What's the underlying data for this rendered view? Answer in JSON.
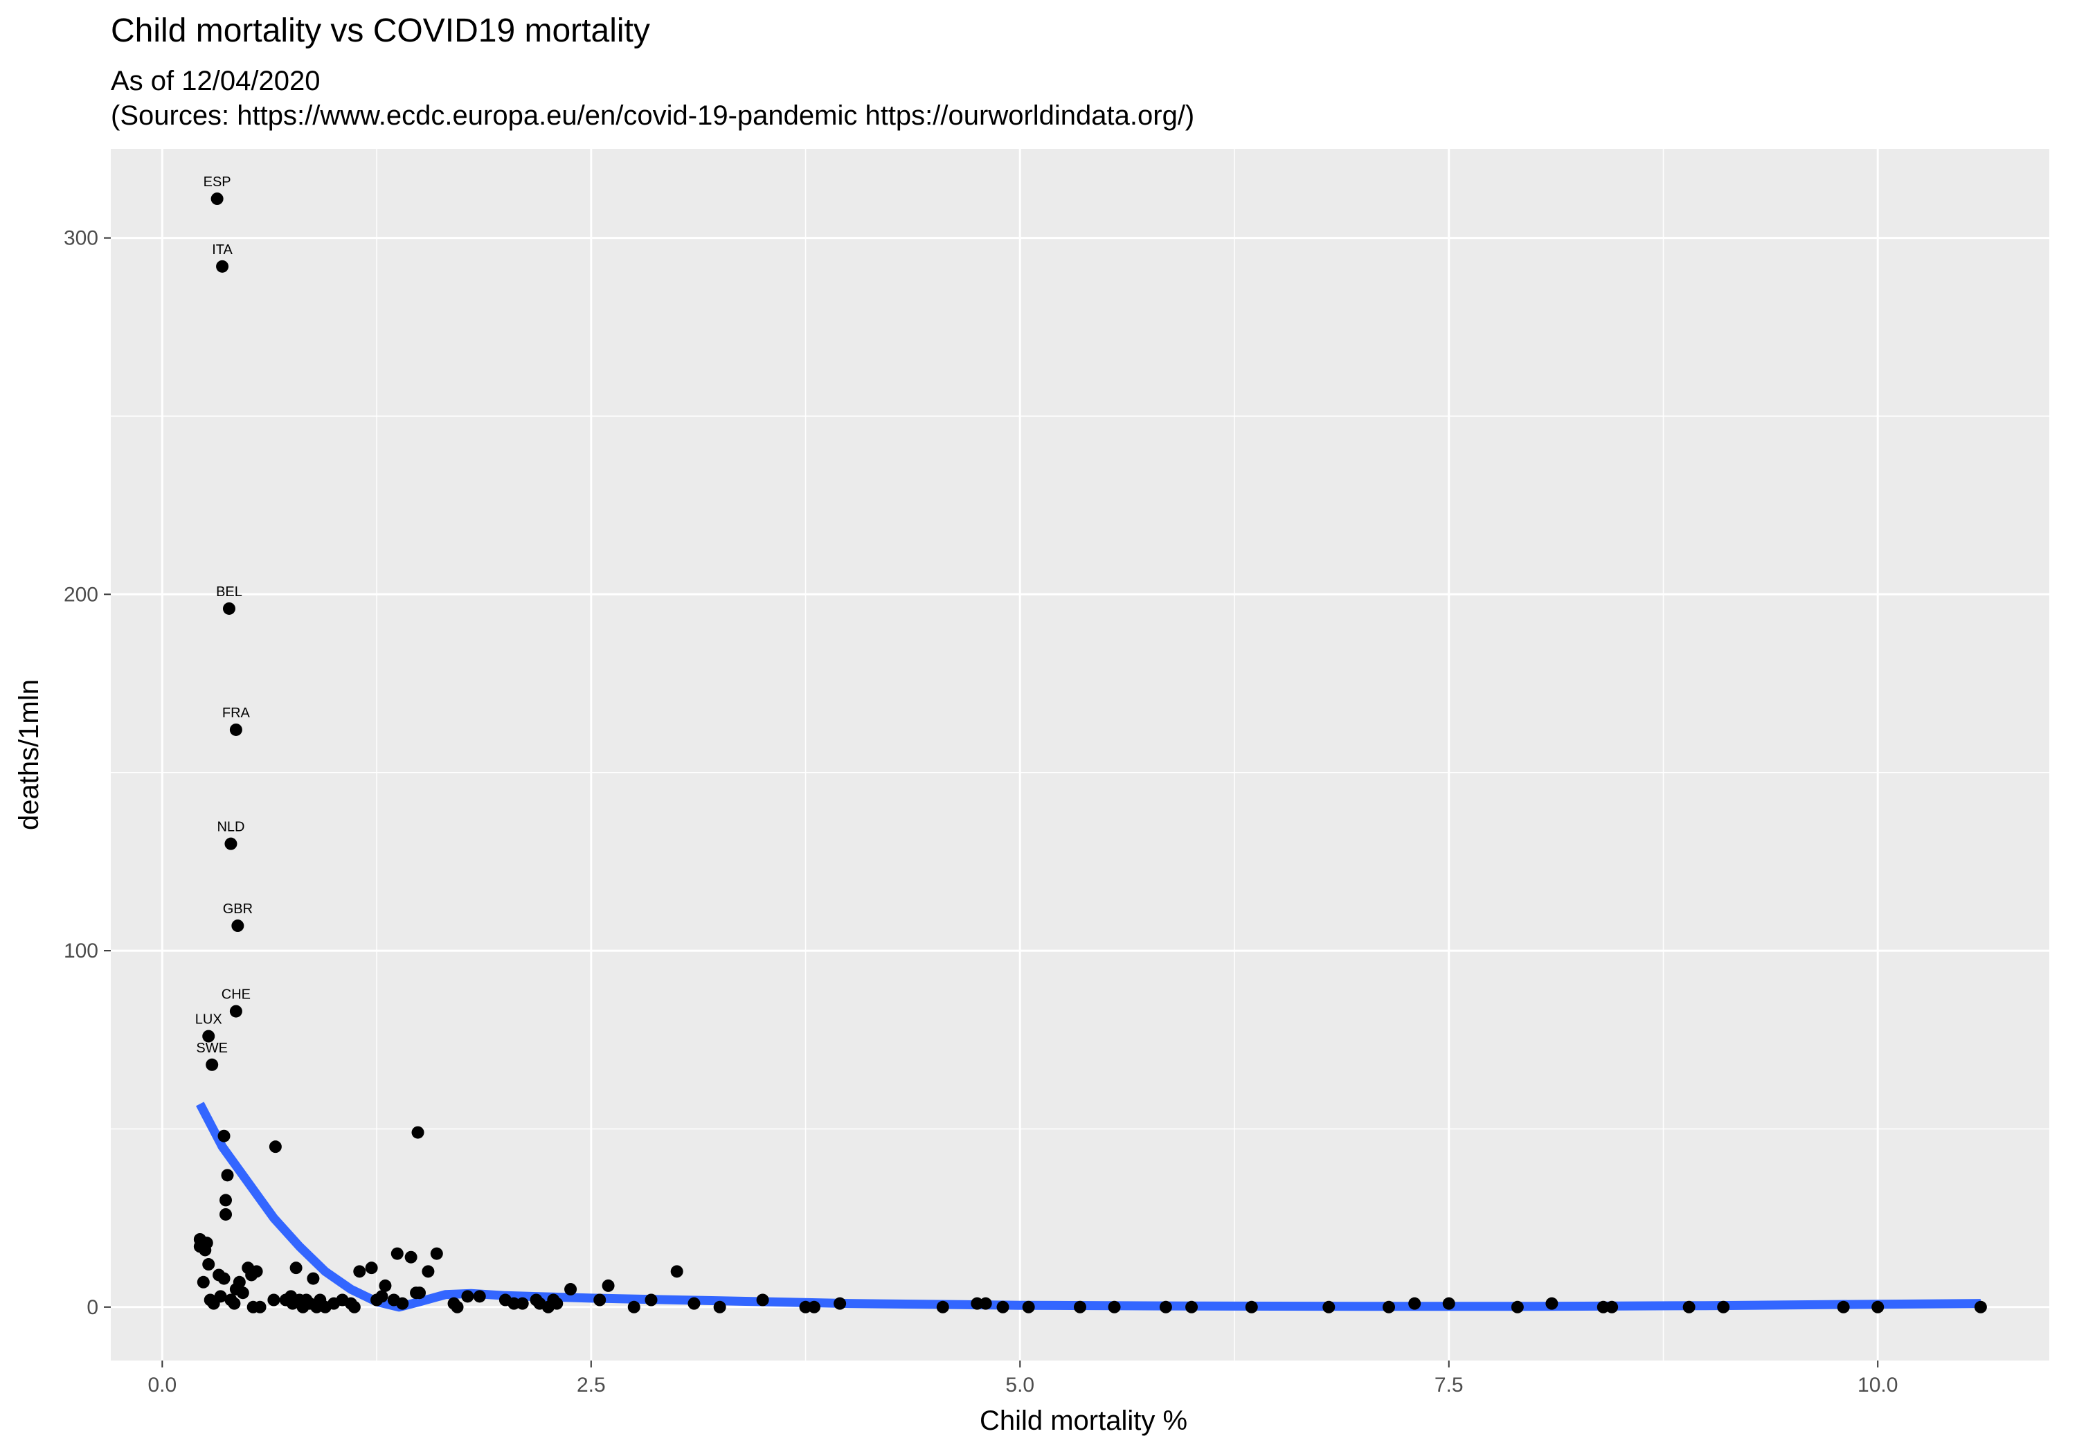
{
  "chart_data": {
    "type": "scatter",
    "title": "Child mortality vs COVID19 mortality",
    "subtitle_lines": [
      "As of 12/04/2020",
      "(Sources: https://www.ecdc.europa.eu/en/covid-19-pandemic https://ourworldindata.org/)"
    ],
    "xlabel": "Child mortality %",
    "ylabel": "deaths/1mln",
    "xlim": [
      -0.3,
      11.0
    ],
    "ylim": [
      -15,
      325
    ],
    "x_ticks": [
      0.0,
      2.5,
      5.0,
      7.5,
      10.0
    ],
    "x_tick_labels": [
      "0.0",
      "2.5",
      "5.0",
      "7.5",
      "10.0"
    ],
    "y_ticks": [
      0,
      100,
      200,
      300
    ],
    "y_tick_labels": [
      "0",
      "100",
      "200",
      "300"
    ],
    "grid": true,
    "colors": {
      "panel": "#ebebeb",
      "grid": "#ffffff",
      "point": "#000000",
      "smooth": "#3366ff"
    },
    "labeled_points": [
      {
        "label": "ESP",
        "x": 0.32,
        "y": 311
      },
      {
        "label": "ITA",
        "x": 0.35,
        "y": 292
      },
      {
        "label": "BEL",
        "x": 0.39,
        "y": 196
      },
      {
        "label": "FRA",
        "x": 0.43,
        "y": 162
      },
      {
        "label": "NLD",
        "x": 0.4,
        "y": 130
      },
      {
        "label": "GBR",
        "x": 0.44,
        "y": 107
      },
      {
        "label": "CHE",
        "x": 0.43,
        "y": 83
      },
      {
        "label": "LUX",
        "x": 0.27,
        "y": 76
      },
      {
        "label": "SWE",
        "x": 0.29,
        "y": 68
      }
    ],
    "points": [
      [
        0.22,
        19
      ],
      [
        0.22,
        17
      ],
      [
        0.24,
        7
      ],
      [
        0.25,
        16
      ],
      [
        0.26,
        18
      ],
      [
        0.27,
        12
      ],
      [
        0.28,
        2
      ],
      [
        0.3,
        1
      ],
      [
        0.33,
        9
      ],
      [
        0.34,
        3
      ],
      [
        0.36,
        48
      ],
      [
        0.36,
        8
      ],
      [
        0.37,
        30
      ],
      [
        0.37,
        26
      ],
      [
        0.38,
        37
      ],
      [
        0.4,
        2
      ],
      [
        0.42,
        1
      ],
      [
        0.43,
        5
      ],
      [
        0.45,
        7
      ],
      [
        0.47,
        4
      ],
      [
        0.5,
        11
      ],
      [
        0.52,
        9
      ],
      [
        0.55,
        10
      ],
      [
        0.53,
        0
      ],
      [
        0.57,
        0
      ],
      [
        0.65,
        2
      ],
      [
        0.66,
        45
      ],
      [
        0.72,
        2
      ],
      [
        0.75,
        3
      ],
      [
        0.76,
        1
      ],
      [
        0.78,
        11
      ],
      [
        0.8,
        2
      ],
      [
        0.82,
        0
      ],
      [
        0.84,
        2
      ],
      [
        0.86,
        1
      ],
      [
        0.88,
        8
      ],
      [
        0.9,
        0
      ],
      [
        0.92,
        2
      ],
      [
        0.95,
        0
      ],
      [
        1.0,
        1
      ],
      [
        1.05,
        2
      ],
      [
        1.1,
        1
      ],
      [
        1.12,
        0
      ],
      [
        1.15,
        10
      ],
      [
        1.22,
        11
      ],
      [
        1.25,
        2
      ],
      [
        1.28,
        3
      ],
      [
        1.3,
        6
      ],
      [
        1.35,
        2
      ],
      [
        1.37,
        15
      ],
      [
        1.4,
        1
      ],
      [
        1.45,
        14
      ],
      [
        1.48,
        4
      ],
      [
        1.49,
        49
      ],
      [
        1.5,
        4
      ],
      [
        1.55,
        10
      ],
      [
        1.6,
        15
      ],
      [
        1.7,
        1
      ],
      [
        1.72,
        0
      ],
      [
        1.78,
        3
      ],
      [
        1.85,
        3
      ],
      [
        2.0,
        2
      ],
      [
        2.05,
        1
      ],
      [
        2.1,
        1
      ],
      [
        2.18,
        2
      ],
      [
        2.2,
        1
      ],
      [
        2.25,
        0
      ],
      [
        2.28,
        2
      ],
      [
        2.3,
        1
      ],
      [
        2.38,
        5
      ],
      [
        2.55,
        2
      ],
      [
        2.6,
        6
      ],
      [
        2.75,
        0
      ],
      [
        2.85,
        2
      ],
      [
        3.0,
        10
      ],
      [
        3.1,
        1
      ],
      [
        3.25,
        0
      ],
      [
        3.5,
        2
      ],
      [
        3.75,
        0
      ],
      [
        3.8,
        0
      ],
      [
        3.95,
        1
      ],
      [
        4.55,
        0
      ],
      [
        4.75,
        1
      ],
      [
        4.8,
        1
      ],
      [
        4.9,
        0
      ],
      [
        5.05,
        0
      ],
      [
        5.35,
        0
      ],
      [
        5.55,
        0
      ],
      [
        5.85,
        0
      ],
      [
        6.0,
        0
      ],
      [
        6.35,
        0
      ],
      [
        6.8,
        0
      ],
      [
        7.15,
        0
      ],
      [
        7.3,
        1
      ],
      [
        7.5,
        1
      ],
      [
        7.9,
        0
      ],
      [
        8.1,
        1
      ],
      [
        8.4,
        0
      ],
      [
        8.45,
        0
      ],
      [
        8.9,
        0
      ],
      [
        9.1,
        0
      ],
      [
        9.8,
        0
      ],
      [
        10.0,
        0
      ],
      [
        10.6,
        0
      ]
    ],
    "smooth_curve": [
      [
        0.22,
        57
      ],
      [
        0.35,
        45
      ],
      [
        0.5,
        35
      ],
      [
        0.65,
        25
      ],
      [
        0.8,
        17
      ],
      [
        0.95,
        10
      ],
      [
        1.1,
        5
      ],
      [
        1.25,
        1.5
      ],
      [
        1.38,
        0
      ],
      [
        1.5,
        1.5
      ],
      [
        1.65,
        3.5
      ],
      [
        1.8,
        3.8
      ],
      [
        2.0,
        3.2
      ],
      [
        2.5,
        2.5
      ],
      [
        3.0,
        2.0
      ],
      [
        4.0,
        1.0
      ],
      [
        5.0,
        0.5
      ],
      [
        6.0,
        0.3
      ],
      [
        7.0,
        0.2
      ],
      [
        8.0,
        0.2
      ],
      [
        9.0,
        0.4
      ],
      [
        10.0,
        0.8
      ],
      [
        10.6,
        1.0
      ]
    ]
  }
}
